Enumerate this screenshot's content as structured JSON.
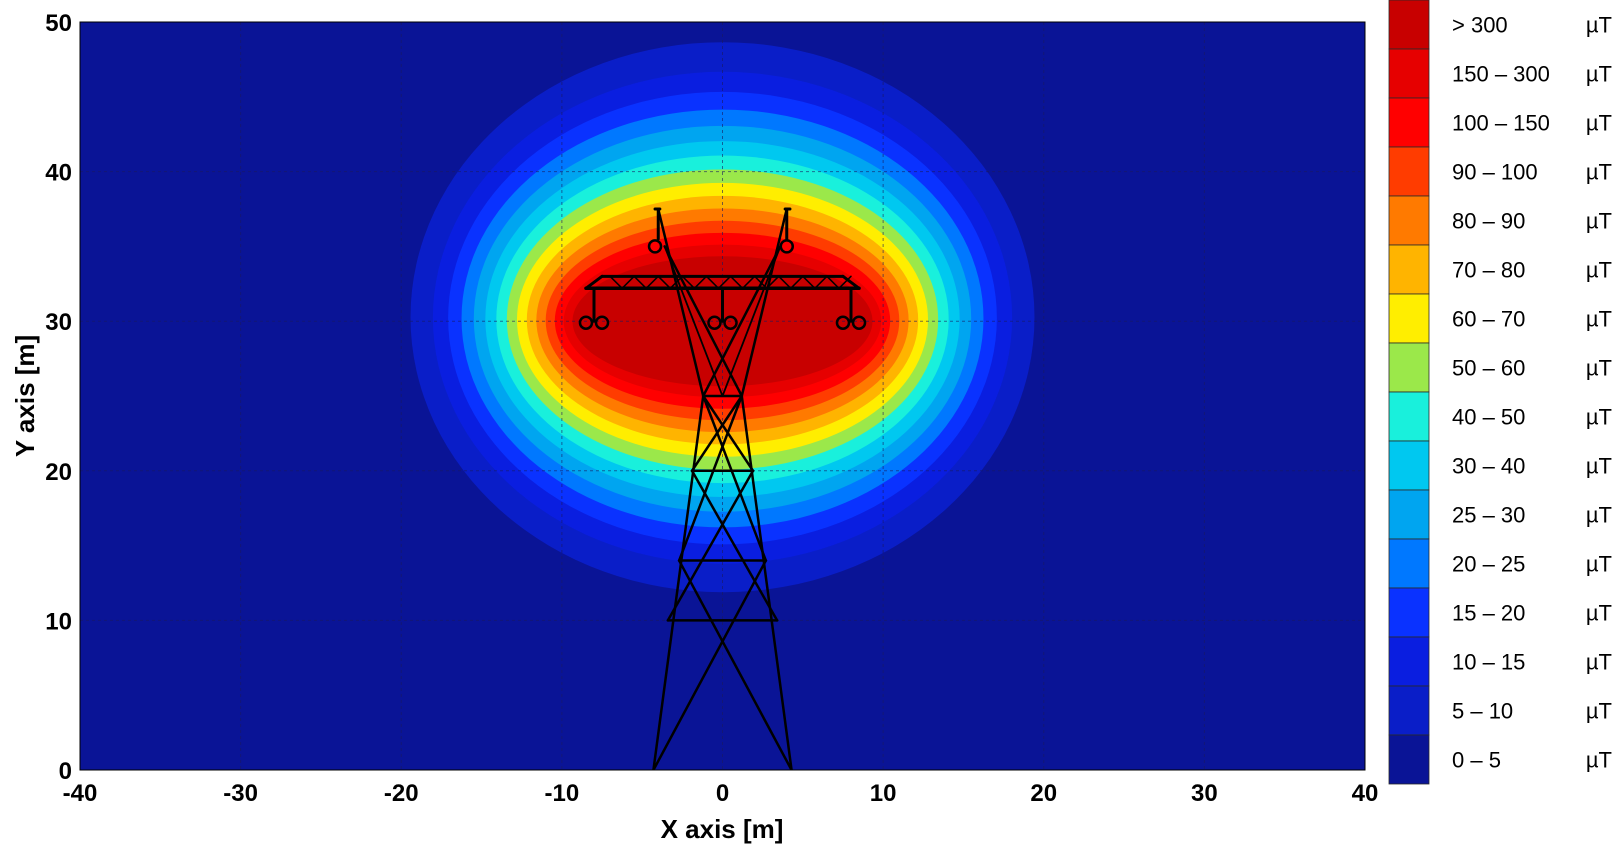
{
  "chart_data": {
    "type": "heatmap",
    "title": "",
    "xlabel": "X axis [m]",
    "ylabel": "Y axis [m]",
    "xlim": [
      -40,
      40
    ],
    "ylim": [
      0,
      50
    ],
    "x_ticks": [
      "-40",
      "-30",
      "-20",
      "-10",
      "0",
      "10",
      "20",
      "30",
      "40"
    ],
    "y_ticks": [
      "0",
      "10",
      "20",
      "30",
      "40",
      "50"
    ],
    "grid": true,
    "legend_placement": "right",
    "field_center": [
      0,
      30
    ],
    "legend": [
      {
        "label": "> 300",
        "unit": "µT",
        "color": "#c80000"
      },
      {
        "label": "150 – 300",
        "unit": "µT",
        "color": "#e60000"
      },
      {
        "label": "100 – 150",
        "unit": "µT",
        "color": "#ff0000"
      },
      {
        "label": "90 – 100",
        "unit": "µT",
        "color": "#ff3c00"
      },
      {
        "label": "80 – 90",
        "unit": "µT",
        "color": "#ff7a00"
      },
      {
        "label": "70 – 80",
        "unit": "µT",
        "color": "#ffb400"
      },
      {
        "label": "60 – 70",
        "unit": "µT",
        "color": "#ffee00"
      },
      {
        "label": "50 – 60",
        "unit": "µT",
        "color": "#9be84a"
      },
      {
        "label": "40 – 50",
        "unit": "µT",
        "color": "#19f0dc"
      },
      {
        "label": "30 – 40",
        "unit": "µT",
        "color": "#00c8f0"
      },
      {
        "label": "25 – 30",
        "unit": "µT",
        "color": "#00a5f0"
      },
      {
        "label": "20 – 25",
        "unit": "µT",
        "color": "#0078ff"
      },
      {
        "label": "15 – 20",
        "unit": "µT",
        "color": "#0a32ff"
      },
      {
        "label": "10 – 15",
        "unit": "µT",
        "color": "#0a1ee0"
      },
      {
        "label": "5 – 10",
        "unit": "µT",
        "color": "#0a1ec8"
      },
      {
        "label": "0 – 5",
        "unit": "µT",
        "color": "#0a1496"
      }
    ],
    "annotations": [
      "transmission tower outline with three conductor pairs at about y = 30 m (x ≈ -8, 0, 8 m)"
    ]
  }
}
